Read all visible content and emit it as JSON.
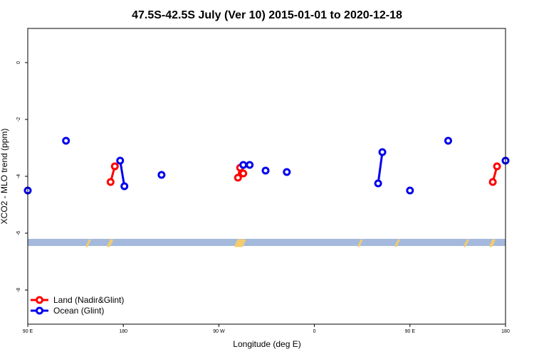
{
  "chart_data": {
    "type": "scatter",
    "title": "47.5S-42.5S July (Ver 10)   2015-01-01 to 2020-12-18",
    "xlabel": "Longitude (deg E)",
    "ylabel": "XCO2 - MLO trend (ppm)",
    "xlim": [
      90,
      540
    ],
    "ylim": [
      -9.2,
      1.2
    ],
    "x_ticks": [
      {
        "value": 90,
        "label": "90 E"
      },
      {
        "value": 180,
        "label": "180"
      },
      {
        "value": 270,
        "label": "90 W"
      },
      {
        "value": 360,
        "label": "0"
      },
      {
        "value": 450,
        "label": "90 E"
      },
      {
        "value": 540,
        "label": "180"
      }
    ],
    "y_ticks": [
      {
        "value": 0,
        "label": "0"
      },
      {
        "value": -2,
        "label": "-2"
      },
      {
        "value": -4,
        "label": "-4"
      },
      {
        "value": -6,
        "label": "-6"
      },
      {
        "value": -8,
        "label": "-8"
      }
    ],
    "legend_position": "bottom-left",
    "land_band": {
      "y_range": [
        -6.45,
        -6.2
      ],
      "color": "#a4b9dc"
    },
    "land_marks": {
      "color": "#f3cc6e",
      "x": [
        147,
        167,
        168,
        287,
        288,
        289,
        290,
        291,
        292,
        293,
        403,
        438,
        503,
        527,
        528
      ]
    },
    "series": [
      {
        "name": "Land (Nadir&Glint)",
        "color": "#ff0000",
        "segments": [
          [
            {
              "x": 168,
              "y": -4.2
            },
            {
              "x": 172,
              "y": -3.65
            }
          ],
          [
            {
              "x": 288,
              "y": -4.05
            },
            {
              "x": 290,
              "y": -3.7
            },
            {
              "x": 293,
              "y": -3.9
            }
          ],
          [
            {
              "x": 528,
              "y": -4.2
            },
            {
              "x": 532,
              "y": -3.65
            }
          ]
        ]
      },
      {
        "name": "Ocean (Glint)",
        "color": "#0000ee",
        "segments": [
          [
            {
              "x": 90,
              "y": -4.5
            }
          ],
          [
            {
              "x": 126,
              "y": -2.75
            }
          ],
          [
            {
              "x": 177,
              "y": -3.45
            },
            {
              "x": 181,
              "y": -4.35
            }
          ],
          [
            {
              "x": 216,
              "y": -3.95
            }
          ],
          [
            {
              "x": 293,
              "y": -3.6
            },
            {
              "x": 299,
              "y": -3.6
            }
          ],
          [
            {
              "x": 314,
              "y": -3.8
            }
          ],
          [
            {
              "x": 334,
              "y": -3.85
            }
          ],
          [
            {
              "x": 420,
              "y": -4.25
            },
            {
              "x": 424,
              "y": -3.15
            }
          ],
          [
            {
              "x": 450,
              "y": -4.5
            }
          ],
          [
            {
              "x": 486,
              "y": -2.75
            }
          ],
          [
            {
              "x": 540,
              "y": -3.45
            }
          ]
        ]
      }
    ]
  }
}
